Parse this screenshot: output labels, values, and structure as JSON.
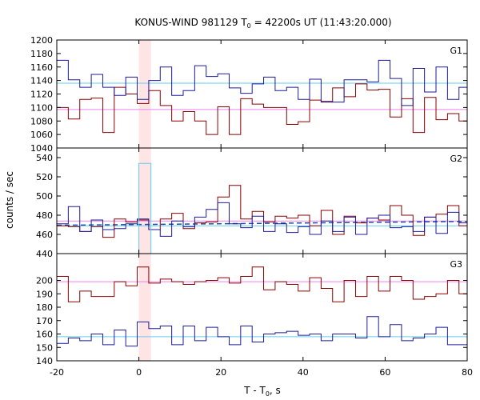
{
  "chart_data": {
    "type": "line",
    "title": {
      "prefix": "KONUS-WIND 981129 T",
      "sub": "0",
      "suffix": " = 42200s UT (11:43:20.000)"
    },
    "xlabel": {
      "prefix": "T - T",
      "sub": "0",
      "suffix": ", s"
    },
    "ylabel": "counts / sec",
    "xlim": [
      -20,
      80
    ],
    "xticks": [
      -20,
      0,
      20,
      40,
      60,
      80
    ],
    "shaded_interval": [
      0,
      2.944
    ],
    "colors": {
      "series_a": "#8b0000",
      "series_b": "#1c1c9c",
      "bg_a": "#ee82ee",
      "bg_b": "#66ccee",
      "shade": "#ffe4e6"
    },
    "panels": [
      {
        "label": "G1",
        "ylim": [
          1040,
          1200
        ],
        "yticks": [
          1040,
          1060,
          1080,
          1100,
          1120,
          1140,
          1160,
          1180,
          1200
        ],
        "series": [
          {
            "edges": [
              -20,
              -17.2,
              -14.4,
              -11.6,
              -8.8,
              -6,
              -3.2,
              -0.4,
              2.4,
              5.2,
              8,
              10.8,
              13.6,
              16.4,
              19.2,
              22,
              24.8,
              27.6,
              30.4,
              33.2,
              36,
              38.8,
              41.6,
              44.4,
              47.2,
              50,
              52.8,
              55.6,
              58.4,
              61.2,
              64,
              66.8,
              69.6,
              72.4,
              75.2,
              78,
              80
            ],
            "values": [
              1100,
              1083,
              1112,
              1114,
              1063,
              1130,
              1120,
              1106,
              1125,
              1103,
              1080,
              1094,
              1080,
              1060,
              1101,
              1060,
              1113,
              1105,
              1100,
              1100,
              1075,
              1079,
              1111,
              1108,
              1129,
              1116,
              1135,
              1126,
              1127,
              1086,
              1113,
              1063,
              1115,
              1082,
              1091,
              1080
            ]
          },
          {
            "edges": [
              -20,
              -17.2,
              -14.4,
              -11.6,
              -8.8,
              -6,
              -3.2,
              -0.4,
              2.4,
              5.2,
              8,
              10.8,
              13.6,
              16.4,
              19.2,
              22,
              24.8,
              27.6,
              30.4,
              33.2,
              36,
              38.8,
              41.6,
              44.4,
              47.2,
              50,
              52.8,
              55.6,
              58.4,
              61.2,
              64,
              66.8,
              69.6,
              72.4,
              75.2,
              78,
              80
            ],
            "values": [
              1170,
              1141,
              1130,
              1149,
              1130,
              1118,
              1145,
              1112,
              1140,
              1160,
              1118,
              1125,
              1162,
              1146,
              1150,
              1129,
              1121,
              1135,
              1145,
              1125,
              1130,
              1112,
              1142,
              1109,
              1108,
              1141,
              1141,
              1138,
              1170,
              1143,
              1103,
              1158,
              1123,
              1160,
              1112,
              1130
            ]
          }
        ],
        "bg": [
          1097,
          1136
        ]
      },
      {
        "label": "G2",
        "ylim": [
          440,
          550
        ],
        "yticks": [
          440,
          460,
          480,
          500,
          520,
          540
        ],
        "series": [
          {
            "edges": [
              -20,
              -17.2,
              -14.4,
              -11.6,
              -8.8,
              -6,
              -3.2,
              -0.4,
              2.4,
              5.2,
              8,
              10.8,
              13.6,
              16.4,
              19.2,
              22,
              24.8,
              27.6,
              30.4,
              33.2,
              36,
              38.8,
              41.6,
              44.4,
              47.2,
              50,
              52.8,
              55.6,
              58.4,
              61.2,
              64,
              66.8,
              69.6,
              72.4,
              75.2,
              78,
              80
            ],
            "values": [
              469,
              468,
              463,
              468,
              457,
              476,
              473,
              475,
              465,
              476,
              482,
              466,
              472,
              473,
              499,
              511,
              476,
              484,
              473,
              479,
              477,
              480,
              469,
              485,
              460,
              479,
              472,
              477,
              475,
              490,
              480,
              459,
              478,
              481,
              490,
              469
            ]
          },
          {
            "edges": [
              -20,
              -17.2,
              -14.4,
              -11.6,
              -8.8,
              -6,
              -3.2,
              -0.4,
              2.4,
              5.2,
              8,
              10.8,
              13.6,
              16.4,
              19.2,
              22,
              24.8,
              27.6,
              30.4,
              33.2,
              36,
              38.8,
              41.6,
              44.4,
              47.2,
              50,
              52.8,
              55.6,
              58.4,
              61.2,
              64,
              66.8,
              69.6,
              72.4,
              75.2,
              78,
              80
            ],
            "values": [
              471,
              489,
              463,
              475,
              465,
              466,
              471,
              476,
              465,
              458,
              474,
              468,
              478,
              486,
              493,
              471,
              467,
              479,
              463,
              471,
              462,
              468,
              460,
              474,
              463,
              478,
              460,
              477,
              480,
              467,
              468,
              463,
              478,
              461,
              483,
              472
            ]
          },
          {
            "edges": [
              0,
              2.944
            ],
            "values": [
              534
            ]
          }
        ],
        "bg": [
          474,
          469
        ],
        "fit_dashed": true
      },
      {
        "label": "G3",
        "ylim": [
          140,
          220
        ],
        "yticks": [
          140,
          150,
          160,
          170,
          180,
          190,
          200
        ],
        "series": [
          {
            "edges": [
              -20,
              -17.2,
              -14.4,
              -11.6,
              -8.8,
              -6,
              -3.2,
              -0.4,
              2.4,
              5.2,
              8,
              10.8,
              13.6,
              16.4,
              19.2,
              22,
              24.8,
              27.6,
              30.4,
              33.2,
              36,
              38.8,
              41.6,
              44.4,
              47.2,
              50,
              52.8,
              55.6,
              58.4,
              61.2,
              64,
              66.8,
              69.6,
              72.4,
              75.2,
              78,
              80
            ],
            "values": [
              203,
              184,
              192,
              188,
              188,
              199,
              196,
              210,
              198,
              201,
              199,
              197,
              199,
              200,
              202,
              198,
              203,
              210,
              193,
              199,
              197,
              192,
              202,
              194,
              184,
              200,
              188,
              203,
              192,
              203,
              200,
              186,
              188,
              190,
              200,
              190
            ]
          },
          {
            "edges": [
              -20,
              -17.2,
              -14.4,
              -11.6,
              -8.8,
              -6,
              -3.2,
              -0.4,
              2.4,
              5.2,
              8,
              10.8,
              13.6,
              16.4,
              19.2,
              22,
              24.8,
              27.6,
              30.4,
              33.2,
              36,
              38.8,
              41.6,
              44.4,
              47.2,
              50,
              52.8,
              55.6,
              58.4,
              61.2,
              64,
              66.8,
              69.6,
              72.4,
              75.2,
              78,
              80
            ],
            "values": [
              153,
              157,
              155,
              160,
              152,
              163,
              151,
              169,
              164,
              166,
              152,
              166,
              155,
              165,
              158,
              152,
              166,
              154,
              160,
              161,
              162,
              159,
              160,
              155,
              160,
              160,
              157,
              173,
              158,
              167,
              155,
              157,
              160,
              165,
              152,
              152
            ]
          }
        ],
        "bg": [
          199,
          158
        ]
      }
    ]
  }
}
